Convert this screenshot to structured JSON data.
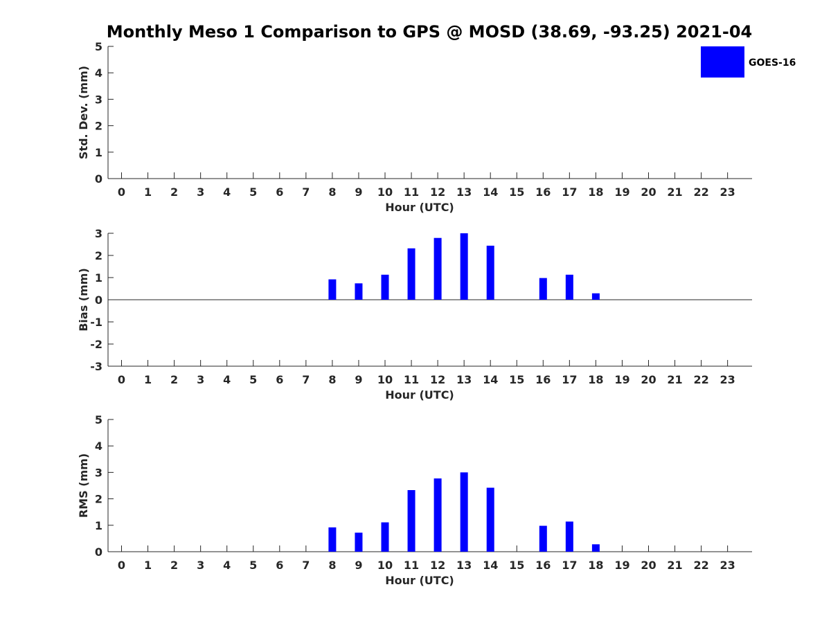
{
  "figure": {
    "title": "Monthly Meso 1 Comparison to GPS @ MOSD (38.69, -93.25) 2021-04",
    "legend": {
      "label": "GOES-16",
      "color": "#0000ff",
      "placement": "top-right"
    }
  },
  "chart_data": [
    {
      "type": "bar",
      "name": "stddev",
      "title": "",
      "xlabel": "Hour (UTC)",
      "ylabel": "Std. Dev. (mm)",
      "categories": [
        "0",
        "1",
        "2",
        "3",
        "4",
        "5",
        "6",
        "7",
        "8",
        "9",
        "10",
        "11",
        "12",
        "13",
        "14",
        "15",
        "16",
        "17",
        "18",
        "19",
        "20",
        "21",
        "22",
        "23"
      ],
      "ylim": [
        0,
        5
      ],
      "yticks": [
        "0",
        "1",
        "2",
        "3",
        "4",
        "5"
      ],
      "series": [
        {
          "name": "GOES-16",
          "color": "#0000ff",
          "values": [
            null,
            null,
            null,
            null,
            null,
            null,
            null,
            null,
            null,
            null,
            null,
            null,
            null,
            null,
            null,
            null,
            null,
            null,
            null,
            null,
            null,
            null,
            null,
            null
          ]
        }
      ],
      "grid": false
    },
    {
      "type": "bar",
      "name": "bias",
      "title": "",
      "xlabel": "Hour (UTC)",
      "ylabel": "Bias (mm)",
      "categories": [
        "0",
        "1",
        "2",
        "3",
        "4",
        "5",
        "6",
        "7",
        "8",
        "9",
        "10",
        "11",
        "12",
        "13",
        "14",
        "15",
        "16",
        "17",
        "18",
        "19",
        "20",
        "21",
        "22",
        "23"
      ],
      "ylim": [
        -3,
        3
      ],
      "yticks": [
        "-3",
        "-2",
        "-1",
        "0",
        "1",
        "2",
        "3"
      ],
      "zero_line": true,
      "series": [
        {
          "name": "GOES-16",
          "color": "#0000ff",
          "values": [
            null,
            null,
            null,
            null,
            null,
            null,
            null,
            null,
            0.92,
            0.74,
            1.13,
            2.32,
            2.79,
            3.0,
            2.44,
            null,
            0.98,
            1.13,
            0.29,
            null,
            null,
            null,
            null,
            null
          ]
        }
      ],
      "grid": false
    },
    {
      "type": "bar",
      "name": "rms",
      "title": "",
      "xlabel": "Hour (UTC)",
      "ylabel": "RMS (mm)",
      "categories": [
        "0",
        "1",
        "2",
        "3",
        "4",
        "5",
        "6",
        "7",
        "8",
        "9",
        "10",
        "11",
        "12",
        "13",
        "14",
        "15",
        "16",
        "17",
        "18",
        "19",
        "20",
        "21",
        "22",
        "23"
      ],
      "ylim": [
        0,
        5
      ],
      "yticks": [
        "0",
        "1",
        "2",
        "3",
        "4",
        "5"
      ],
      "series": [
        {
          "name": "GOES-16",
          "color": "#0000ff",
          "values": [
            null,
            null,
            null,
            null,
            null,
            null,
            null,
            null,
            0.92,
            0.72,
            1.11,
            2.33,
            2.77,
            3.0,
            2.42,
            null,
            0.98,
            1.14,
            0.28,
            null,
            null,
            null,
            null,
            null
          ]
        }
      ],
      "grid": false
    }
  ]
}
